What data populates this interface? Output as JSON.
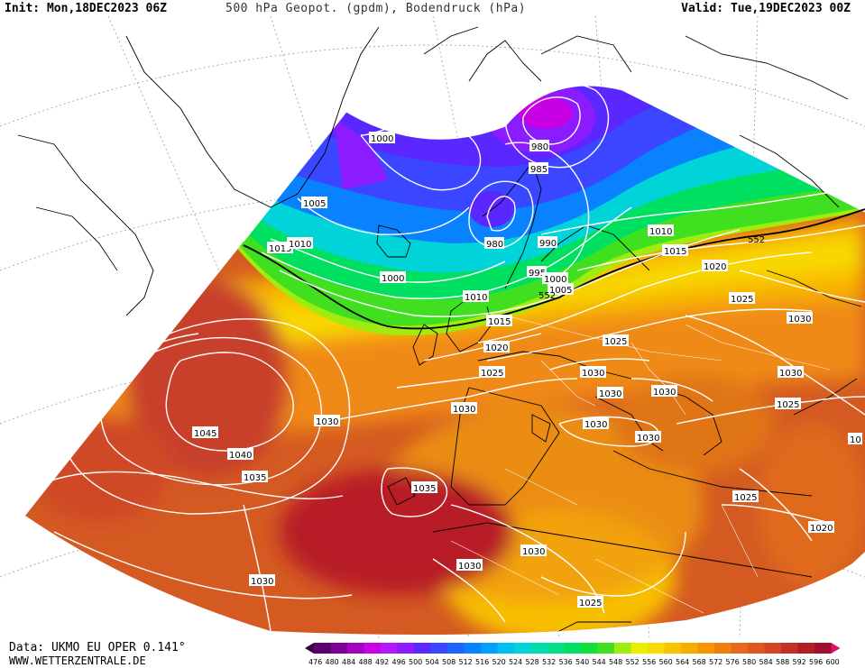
{
  "header": {
    "init": "Init: Mon,18DEC2023 06Z",
    "title": "500 hPa Geopot. (gpdm), Bodendruck (hPa)",
    "valid": "Valid: Tue,19DEC2023 00Z"
  },
  "footer": {
    "data_source": "Data: UKMO EU OPER 0.141°",
    "website": "WWW.WETTERZENTRALE.DE"
  },
  "legend": {
    "values": [
      "476",
      "480",
      "484",
      "488",
      "492",
      "496",
      "500",
      "504",
      "508",
      "512",
      "516",
      "520",
      "524",
      "528",
      "532",
      "536",
      "540",
      "544",
      "548",
      "552",
      "556",
      "560",
      "564",
      "568",
      "572",
      "576",
      "580",
      "584",
      "588",
      "592",
      "596",
      "600"
    ],
    "colors": [
      "#3a0040",
      "#5a006e",
      "#7e0096",
      "#a400c0",
      "#c800e4",
      "#b418ff",
      "#8a1cff",
      "#5a28ff",
      "#3a46ff",
      "#2064ff",
      "#0a82ff",
      "#00a0ff",
      "#00bef0",
      "#00d4d8",
      "#00dcb0",
      "#00e08a",
      "#00e060",
      "#10e03a",
      "#40e020",
      "#a0ec10",
      "#e8f000",
      "#f8dc00",
      "#f8c400",
      "#f8ac00",
      "#f89400",
      "#f07e10",
      "#e86a18",
      "#e05620",
      "#d44424",
      "#c43028",
      "#b41c28",
      "#a0102c",
      "#e0106a"
    ]
  },
  "isobar_labels": {
    "greenland_1000": "1000",
    "greenland_1005": "1005",
    "west_1015": "1015",
    "west_1010": "1010",
    "scand_980_top": "980",
    "scand_985": "985",
    "scand_980_low": "980",
    "scand_990": "990",
    "scand_995": "995",
    "scand_1000": "1000",
    "scand_1005": "1005",
    "atl_1000": "1000",
    "atl_1010": "1010",
    "atl_1015": "1015",
    "ne_1010": "1010",
    "ne_1015": "1015",
    "ne_1020": "1020",
    "ne_1025": "1025",
    "east_1030": "1030",
    "uk_1020": "1020",
    "uk_1025": "1025",
    "c_1025": "1025",
    "c_1030_a": "1030",
    "c_1030_b": "1030",
    "c_1030_c": "1030",
    "c_1030_d": "1030",
    "c_1030_e": "1030",
    "e_1030": "1030",
    "e_1025": "1025",
    "e_edge_10": "10",
    "atl_1030": "1030",
    "bis_1030": "1030",
    "hi_1045": "1045",
    "hi_1040": "1040",
    "hi_1035": "1035",
    "az_1035": "1035",
    "sw_1030": "1030",
    "afr_1030_a": "1030",
    "afr_1030_b": "1030",
    "afr_1025": "1025",
    "se_1025": "1025",
    "se_1020": "1020"
  },
  "geopot_labels": {
    "n_552": "552",
    "s_552": "552"
  },
  "colors": {
    "background": "#ffffff",
    "isobar": "#ffffff",
    "coast": "#000000",
    "line_552": "#000000"
  }
}
